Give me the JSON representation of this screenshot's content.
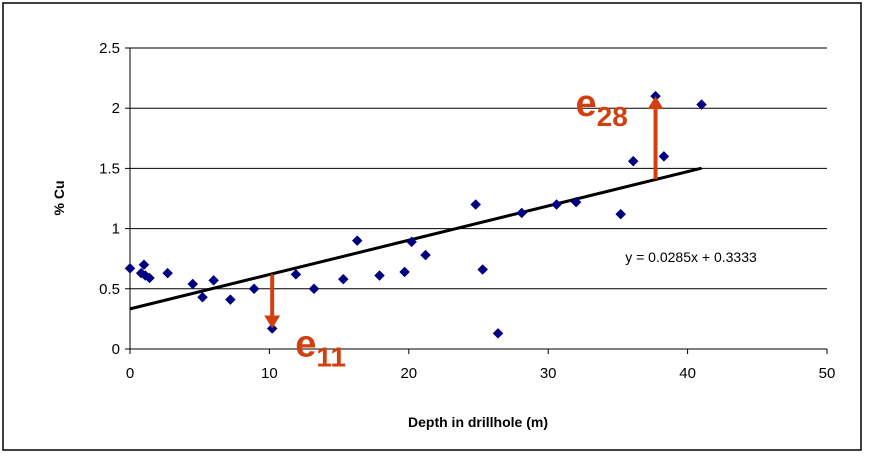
{
  "chart_data": {
    "type": "scatter",
    "xlabel": "Depth in drillhole (m)",
    "ylabel": "% Cu",
    "xlim": [
      0,
      50
    ],
    "ylim": [
      0,
      2.5
    ],
    "xticks": [
      0,
      10,
      20,
      30,
      40,
      50
    ],
    "yticks": [
      0,
      0.5,
      1,
      1.5,
      2,
      2.5
    ],
    "xtick_labels": [
      "0",
      "10",
      "20",
      "30",
      "40",
      "50"
    ],
    "ytick_labels": [
      "0",
      "0.5",
      "1",
      "1.5",
      "2",
      "2.5"
    ],
    "grid": "horizontal",
    "legend": "none",
    "points": [
      {
        "x": 0.0,
        "y": 0.67
      },
      {
        "x": 0.8,
        "y": 0.63
      },
      {
        "x": 1.0,
        "y": 0.7
      },
      {
        "x": 1.1,
        "y": 0.61
      },
      {
        "x": 1.4,
        "y": 0.59
      },
      {
        "x": 2.7,
        "y": 0.63
      },
      {
        "x": 4.5,
        "y": 0.54
      },
      {
        "x": 5.2,
        "y": 0.43
      },
      {
        "x": 6.0,
        "y": 0.57
      },
      {
        "x": 7.2,
        "y": 0.41
      },
      {
        "x": 8.9,
        "y": 0.5
      },
      {
        "x": 10.2,
        "y": 0.17
      },
      {
        "x": 11.9,
        "y": 0.62
      },
      {
        "x": 13.2,
        "y": 0.5
      },
      {
        "x": 15.3,
        "y": 0.58
      },
      {
        "x": 16.3,
        "y": 0.9
      },
      {
        "x": 17.9,
        "y": 0.61
      },
      {
        "x": 19.7,
        "y": 0.64
      },
      {
        "x": 20.2,
        "y": 0.89
      },
      {
        "x": 21.2,
        "y": 0.78
      },
      {
        "x": 24.8,
        "y": 1.2
      },
      {
        "x": 25.3,
        "y": 0.66
      },
      {
        "x": 26.4,
        "y": 0.13
      },
      {
        "x": 28.1,
        "y": 1.13
      },
      {
        "x": 30.6,
        "y": 1.2
      },
      {
        "x": 32.0,
        "y": 1.22
      },
      {
        "x": 35.2,
        "y": 1.12
      },
      {
        "x": 36.1,
        "y": 1.56
      },
      {
        "x": 37.7,
        "y": 2.1
      },
      {
        "x": 38.3,
        "y": 1.6
      },
      {
        "x": 41.0,
        "y": 2.03
      }
    ],
    "trendline": {
      "slope": 0.0285,
      "intercept": 0.3333,
      "x_range": [
        0,
        41
      ],
      "equation_label": "y = 0.0285x + 0.3333"
    },
    "marker_color": "#000080",
    "trendline_color": "#000000",
    "grid_color": "#000000",
    "annotations": [
      {
        "base": "e",
        "subscript": "11",
        "point_x": 10.2,
        "arrow_from_y": 0.62,
        "arrow_to_y": 0.17,
        "color": "#D04010"
      },
      {
        "base": "e",
        "subscript": "28",
        "point_x": 37.7,
        "arrow_from_y": 1.41,
        "arrow_to_y": 2.1,
        "color": "#D04010"
      }
    ]
  }
}
